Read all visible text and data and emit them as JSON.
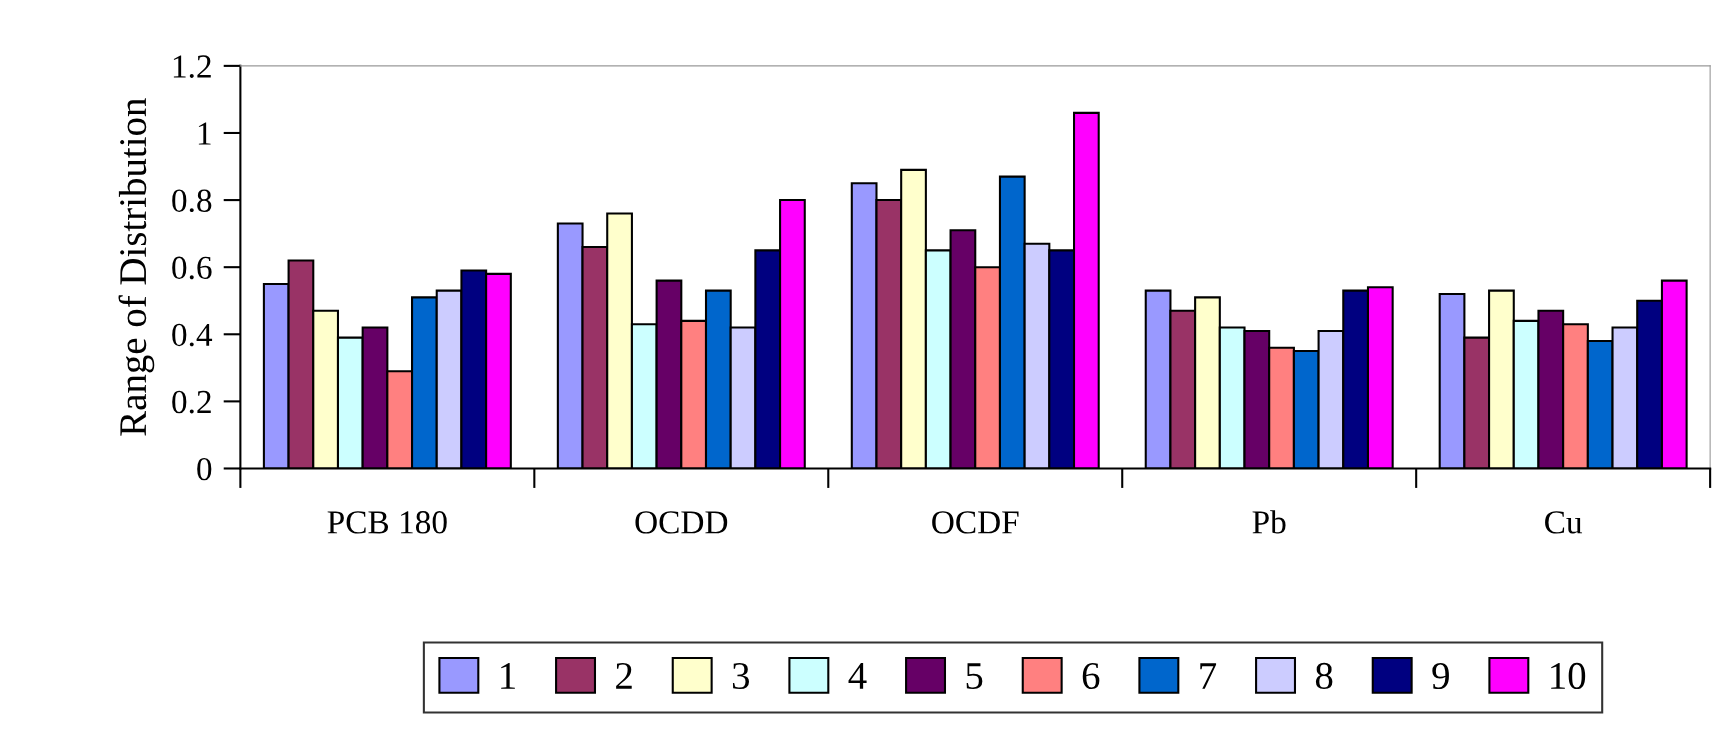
{
  "chart_data": {
    "type": "bar",
    "ylabel": "Range of Distribution",
    "categories": [
      "PCB 180",
      "OCDD",
      "OCDF",
      "Pb",
      "Cu"
    ],
    "series": [
      {
        "name": "1",
        "color": "#9999ff",
        "values": [
          0.55,
          0.73,
          0.85,
          0.53,
          0.52
        ]
      },
      {
        "name": "2",
        "color": "#993366",
        "values": [
          0.62,
          0.66,
          0.8,
          0.47,
          0.39
        ]
      },
      {
        "name": "3",
        "color": "#ffffcc",
        "values": [
          0.47,
          0.76,
          0.89,
          0.51,
          0.53
        ]
      },
      {
        "name": "4",
        "color": "#ccffff",
        "values": [
          0.39,
          0.43,
          0.65,
          0.42,
          0.44
        ]
      },
      {
        "name": "5",
        "color": "#660066",
        "values": [
          0.42,
          0.56,
          0.71,
          0.41,
          0.47
        ]
      },
      {
        "name": "6",
        "color": "#ff8080",
        "values": [
          0.29,
          0.44,
          0.6,
          0.36,
          0.43
        ]
      },
      {
        "name": "7",
        "color": "#0066cc",
        "values": [
          0.51,
          0.53,
          0.87,
          0.35,
          0.38
        ]
      },
      {
        "name": "8",
        "color": "#ccccff",
        "values": [
          0.53,
          0.42,
          0.67,
          0.41,
          0.42
        ]
      },
      {
        "name": "9",
        "color": "#000080",
        "values": [
          0.59,
          0.65,
          0.65,
          0.53,
          0.5
        ]
      },
      {
        "name": "10",
        "color": "#ff00ff",
        "values": [
          0.58,
          0.8,
          1.06,
          0.54,
          0.56
        ]
      }
    ],
    "ylim": [
      0,
      1.2
    ],
    "yticks": [
      0,
      0.2,
      0.4,
      0.6,
      0.8,
      1,
      1.2
    ],
    "grid": false,
    "legend": "bottom"
  }
}
